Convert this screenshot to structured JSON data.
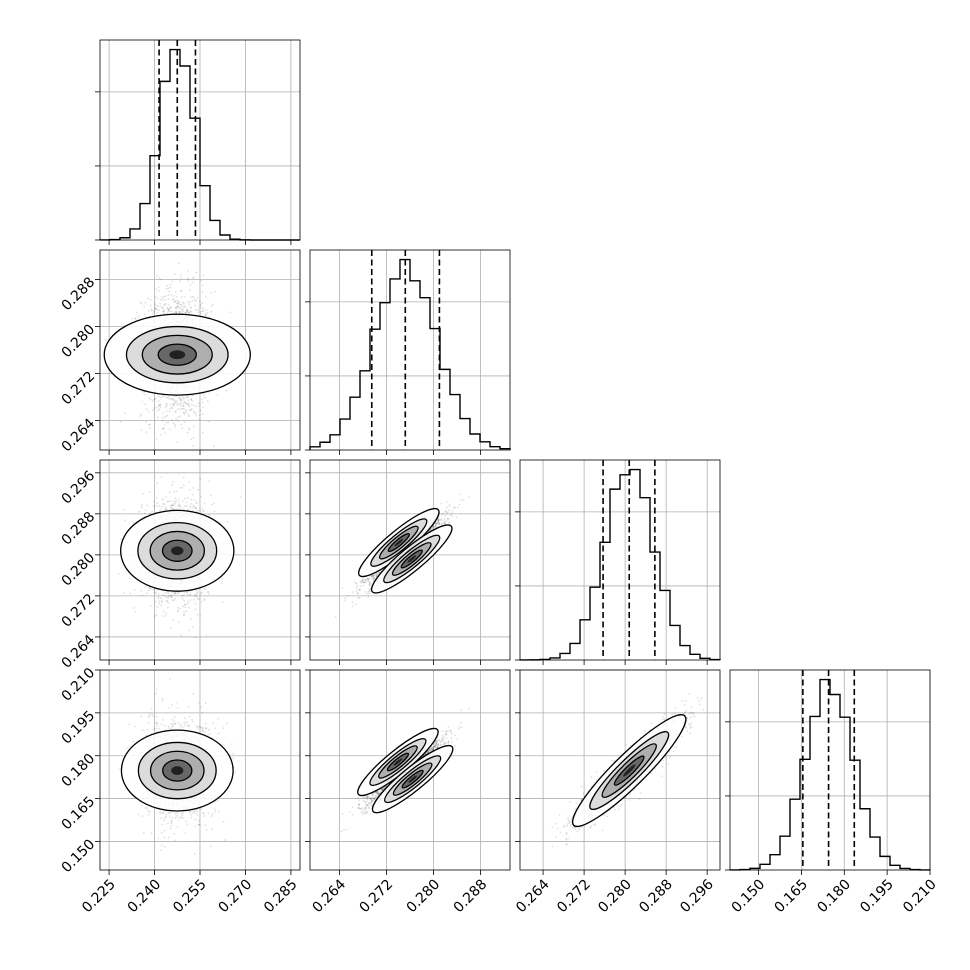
{
  "chart_data": {
    "type": "corner",
    "parameters": [
      {
        "range": [
          0.222,
          0.288
        ],
        "ticks": [
          0.225,
          0.24,
          0.255,
          0.27,
          0.285
        ],
        "tick_labels": [
          "0.225",
          "0.240",
          "0.255",
          "0.270",
          "0.285"
        ],
        "mean": 0.2475,
        "std": 0.0058,
        "quantiles": [
          0.2415,
          0.2475,
          0.2535
        ]
      },
      {
        "range": [
          0.259,
          0.293
        ],
        "ticks": [
          0.264,
          0.272,
          0.28,
          0.288
        ],
        "tick_labels": [
          "0.264",
          "0.272",
          "0.280",
          "0.288"
        ],
        "mean": 0.2752,
        "std": 0.0054,
        "quantiles": [
          0.2695,
          0.2752,
          0.281
        ]
      },
      {
        "range": [
          0.2595,
          0.2985
        ],
        "ticks": [
          0.264,
          0.272,
          0.28,
          0.288,
          0.296
        ],
        "tick_labels": [
          "0.264",
          "0.272",
          "0.280",
          "0.288",
          "0.296"
        ],
        "mean": 0.2808,
        "std": 0.0048,
        "quantiles": [
          0.2757,
          0.2808,
          0.2858
        ]
      },
      {
        "range": [
          0.14,
          0.21
        ],
        "ticks": [
          0.15,
          0.165,
          0.18,
          0.195,
          0.21
        ],
        "tick_labels": [
          "0.150",
          "0.165",
          "0.180",
          "0.195",
          "0.210"
        ],
        "mean": 0.1748,
        "std": 0.0085,
        "quantiles": [
          0.1655,
          0.1745,
          0.1835
        ]
      }
    ],
    "correlations": [
      [
        1,
        0,
        0,
        0
      ],
      [
        0,
        1,
        0.8,
        0.55
      ],
      [
        0,
        0.8,
        1,
        0.92
      ],
      [
        0,
        0.55,
        0.92,
        1
      ]
    ],
    "bimodal_pairs": [
      {
        "row": 2,
        "col": 1,
        "offset": [
          0.0022,
          -0.0032
        ]
      },
      {
        "row": 3,
        "col": 1,
        "offset": [
          0.0025,
          -0.006
        ]
      }
    ],
    "grid": true
  }
}
